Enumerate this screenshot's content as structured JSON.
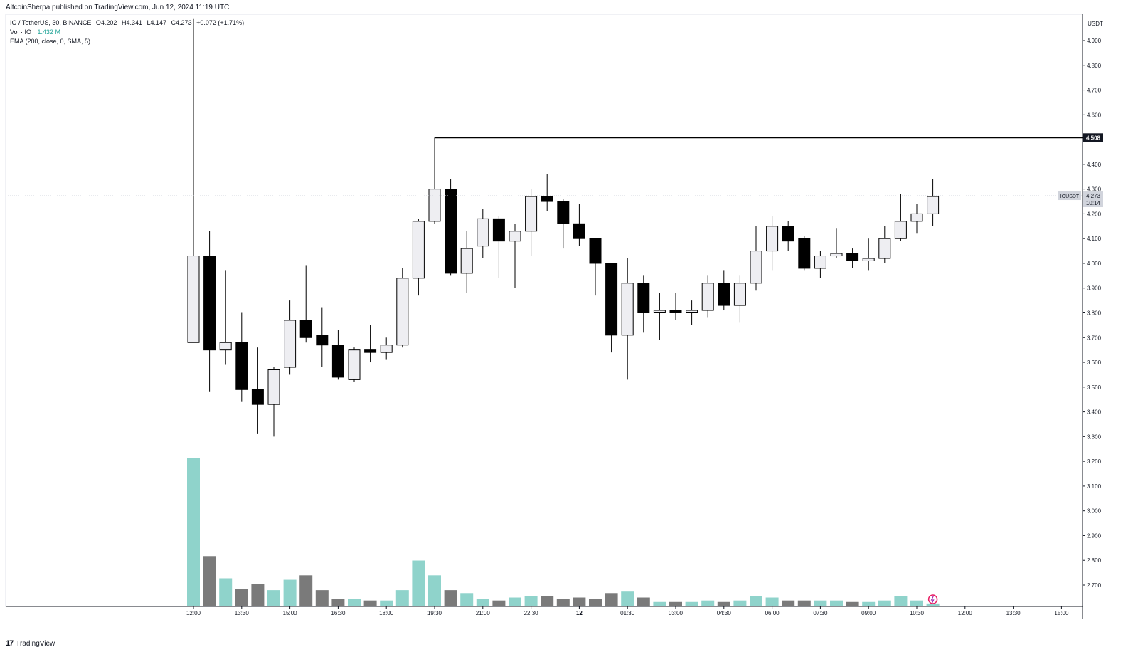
{
  "header": {
    "published": "AltcoinSherpa published on TradingView.com, Jun 12, 2024 11:19 UTC"
  },
  "legend": {
    "symbol": "IO / TetherUS, 30, BINANCE",
    "open": "O4.202",
    "high": "H4.341",
    "low": "L4.147",
    "close": "C4.273",
    "change": "+0.072 (+1.71%)",
    "volume_label": "Vol · IO",
    "volume_value": "1.432 M",
    "ema": "EMA (200, close, 0, SMA, 5)"
  },
  "footer": {
    "brand": "TradingView"
  },
  "colors": {
    "up_fill": "#eeeef2",
    "down_fill": "#000000",
    "wick": "#000000",
    "vol_up": "#8fd3cb",
    "vol_down": "#7a7a7a",
    "price_tag": "#131722"
  },
  "chart_data": {
    "type": "candlestick",
    "currency": "USDT",
    "ylim": [
      2.6,
      4.98
    ],
    "y_ticks": [
      "4.900",
      "4.800",
      "4.700",
      "4.600",
      "4.500",
      "4.400",
      "4.300",
      "4.200",
      "4.100",
      "4.000",
      "3.900",
      "3.800",
      "3.700",
      "3.600",
      "3.500",
      "3.400",
      "3.300",
      "3.200",
      "3.100",
      "3.000",
      "2.900",
      "2.800",
      "2.700"
    ],
    "x_ticks": [
      "12:00",
      "13:30",
      "15:00",
      "16:30",
      "18:00",
      "19:30",
      "21:00",
      "22:30",
      "12",
      "01:30",
      "03:00",
      "04:30",
      "06:00",
      "07:30",
      "09:00",
      "10:30",
      "12:00",
      "13:30",
      "15:00"
    ],
    "horizontal_line": {
      "value": 4.508,
      "label": "4.508"
    },
    "last_price": {
      "symbol": "IOUSDT",
      "value": "4.273",
      "countdown": "10:14"
    },
    "candles": [
      {
        "o": 3.68,
        "h": 4.99,
        "l": 3.68,
        "c": 4.03,
        "v": 1.0
      },
      {
        "o": 4.03,
        "h": 4.13,
        "l": 3.48,
        "c": 3.65,
        "v": 0.34
      },
      {
        "o": 3.65,
        "h": 3.97,
        "l": 3.59,
        "c": 3.68,
        "v": 0.19
      },
      {
        "o": 3.68,
        "h": 3.8,
        "l": 3.44,
        "c": 3.49,
        "v": 0.12
      },
      {
        "o": 3.49,
        "h": 3.66,
        "l": 3.31,
        "c": 3.43,
        "v": 0.15
      },
      {
        "o": 3.43,
        "h": 3.58,
        "l": 3.3,
        "c": 3.57,
        "v": 0.11
      },
      {
        "o": 3.58,
        "h": 3.85,
        "l": 3.55,
        "c": 3.77,
        "v": 0.18
      },
      {
        "o": 3.77,
        "h": 3.99,
        "l": 3.68,
        "c": 3.7,
        "v": 0.21
      },
      {
        "o": 3.71,
        "h": 3.82,
        "l": 3.58,
        "c": 3.67,
        "v": 0.11
      },
      {
        "o": 3.67,
        "h": 3.73,
        "l": 3.53,
        "c": 3.54,
        "v": 0.05
      },
      {
        "o": 3.53,
        "h": 3.66,
        "l": 3.52,
        "c": 3.65,
        "v": 0.05
      },
      {
        "o": 3.65,
        "h": 3.75,
        "l": 3.6,
        "c": 3.64,
        "v": 0.04
      },
      {
        "o": 3.64,
        "h": 3.7,
        "l": 3.61,
        "c": 3.67,
        "v": 0.04
      },
      {
        "o": 3.67,
        "h": 3.98,
        "l": 3.66,
        "c": 3.94,
        "v": 0.11
      },
      {
        "o": 3.94,
        "h": 4.18,
        "l": 3.87,
        "c": 4.17,
        "v": 0.31
      },
      {
        "o": 4.17,
        "h": 4.45,
        "l": 4.16,
        "c": 4.3,
        "v": 0.21
      },
      {
        "o": 4.3,
        "h": 4.34,
        "l": 3.95,
        "c": 3.96,
        "v": 0.11
      },
      {
        "o": 3.96,
        "h": 4.13,
        "l": 3.88,
        "c": 4.06,
        "v": 0.09
      },
      {
        "o": 4.07,
        "h": 4.22,
        "l": 4.02,
        "c": 4.18,
        "v": 0.05
      },
      {
        "o": 4.18,
        "h": 4.19,
        "l": 3.94,
        "c": 4.09,
        "v": 0.04
      },
      {
        "o": 4.09,
        "h": 4.16,
        "l": 3.9,
        "c": 4.13,
        "v": 0.06
      },
      {
        "o": 4.13,
        "h": 4.3,
        "l": 4.03,
        "c": 4.27,
        "v": 0.07
      },
      {
        "o": 4.27,
        "h": 4.36,
        "l": 4.21,
        "c": 4.25,
        "v": 0.07
      },
      {
        "o": 4.25,
        "h": 4.26,
        "l": 4.06,
        "c": 4.16,
        "v": 0.05
      },
      {
        "o": 4.16,
        "h": 4.24,
        "l": 4.07,
        "c": 4.1,
        "v": 0.06
      },
      {
        "o": 4.1,
        "h": 4.1,
        "l": 3.87,
        "c": 4.0,
        "v": 0.05
      },
      {
        "o": 4.0,
        "h": 4.0,
        "l": 3.64,
        "c": 3.71,
        "v": 0.09
      },
      {
        "o": 3.71,
        "h": 4.02,
        "l": 3.53,
        "c": 3.92,
        "v": 0.1
      },
      {
        "o": 3.92,
        "h": 3.95,
        "l": 3.72,
        "c": 3.8,
        "v": 0.06
      },
      {
        "o": 3.8,
        "h": 3.88,
        "l": 3.69,
        "c": 3.81,
        "v": 0.03
      },
      {
        "o": 3.81,
        "h": 3.88,
        "l": 3.77,
        "c": 3.8,
        "v": 0.03
      },
      {
        "o": 3.8,
        "h": 3.85,
        "l": 3.75,
        "c": 3.81,
        "v": 0.03
      },
      {
        "o": 3.81,
        "h": 3.95,
        "l": 3.78,
        "c": 3.92,
        "v": 0.04
      },
      {
        "o": 3.92,
        "h": 3.97,
        "l": 3.81,
        "c": 3.83,
        "v": 0.03
      },
      {
        "o": 3.83,
        "h": 3.95,
        "l": 3.76,
        "c": 3.92,
        "v": 0.04
      },
      {
        "o": 3.92,
        "h": 4.15,
        "l": 3.89,
        "c": 4.05,
        "v": 0.07
      },
      {
        "o": 4.05,
        "h": 4.19,
        "l": 3.97,
        "c": 4.15,
        "v": 0.06
      },
      {
        "o": 4.15,
        "h": 4.17,
        "l": 4.05,
        "c": 4.09,
        "v": 0.04
      },
      {
        "o": 4.1,
        "h": 4.11,
        "l": 3.97,
        "c": 3.98,
        "v": 0.04
      },
      {
        "o": 3.98,
        "h": 4.05,
        "l": 3.94,
        "c": 4.03,
        "v": 0.04
      },
      {
        "o": 4.03,
        "h": 4.14,
        "l": 4.02,
        "c": 4.04,
        "v": 0.04
      },
      {
        "o": 4.04,
        "h": 4.06,
        "l": 3.98,
        "c": 4.01,
        "v": 0.03
      },
      {
        "o": 4.01,
        "h": 4.1,
        "l": 3.97,
        "c": 4.02,
        "v": 0.03
      },
      {
        "o": 4.02,
        "h": 4.15,
        "l": 4.0,
        "c": 4.1,
        "v": 0.04
      },
      {
        "o": 4.1,
        "h": 4.28,
        "l": 4.09,
        "c": 4.17,
        "v": 0.07
      },
      {
        "o": 4.17,
        "h": 4.24,
        "l": 4.12,
        "c": 4.2,
        "v": 0.04
      },
      {
        "o": 4.2,
        "h": 4.34,
        "l": 4.15,
        "c": 4.27,
        "v": 0.02
      }
    ]
  }
}
